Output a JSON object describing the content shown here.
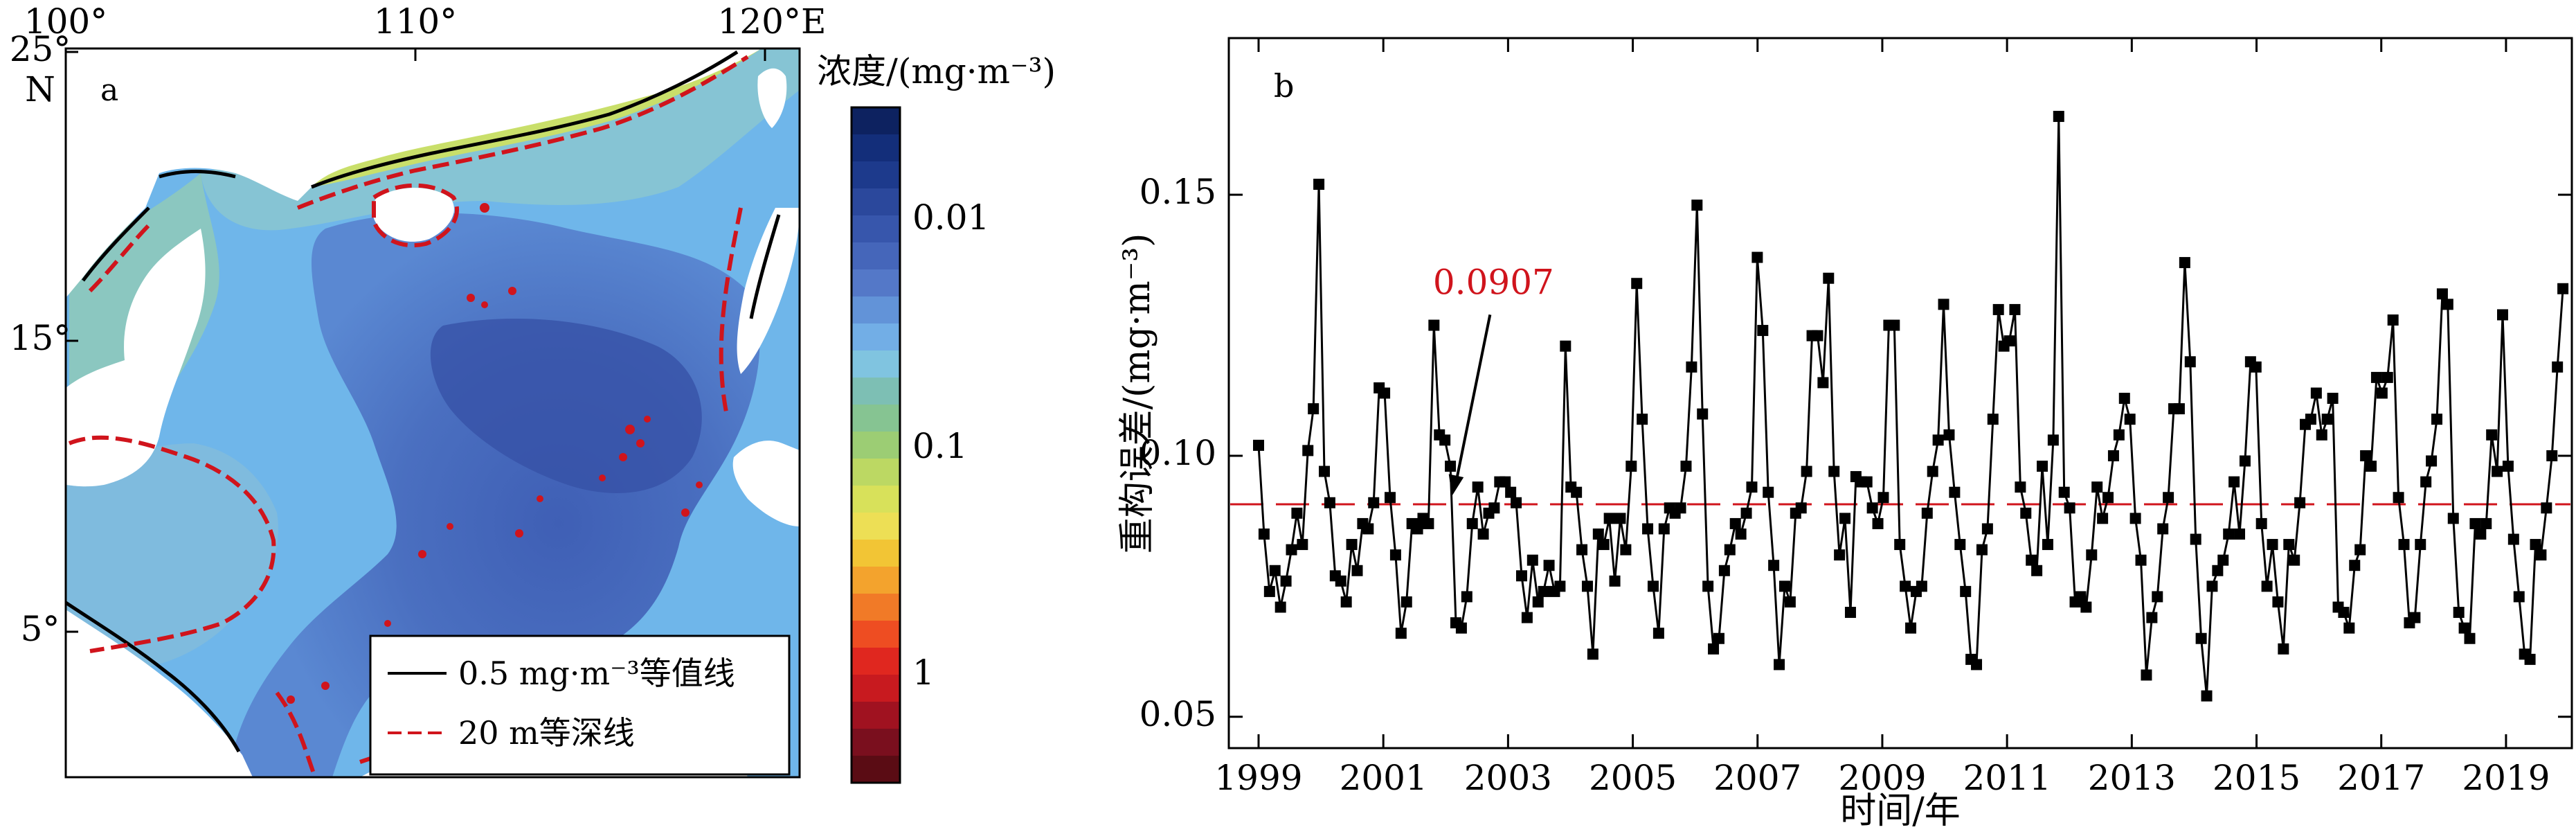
{
  "chart_data": [
    {
      "panel": "a",
      "type": "heatmap",
      "panel_label": "a",
      "x_ticks": [
        "100°",
        "110°",
        "120°E"
      ],
      "y_ticks": [
        "25°\nN",
        "15°",
        "5°"
      ],
      "y_tick_lines": [
        [
          "25°",
          "N"
        ],
        [
          "15°"
        ],
        [
          "5°"
        ]
      ],
      "colorbar": {
        "title": "浓度/(mg·m⁻³)",
        "scale": "log",
        "tick_labels": [
          "0.01",
          "0.1",
          "1"
        ],
        "colors": [
          "#5a0c14",
          "#7a0f1e",
          "#a01220",
          "#c81a1f",
          "#e0271f",
          "#ee4d22",
          "#f17a27",
          "#f3a32d",
          "#f2c535",
          "#eddf55",
          "#d8e15a",
          "#bcd863",
          "#9ccd74",
          "#86c492",
          "#7dbfb4",
          "#80c4e0",
          "#72aee6",
          "#6293d8",
          "#5478c8",
          "#4566ba",
          "#3756ac",
          "#2b489c",
          "#1d3a8c",
          "#132e7a",
          "#0d2260"
        ]
      },
      "legend": [
        {
          "label": "0.5 mg·m⁻³等值线",
          "style": "solid",
          "color": "#000000"
        },
        {
          "label": "20 m等深线",
          "style": "dashed",
          "color": "#d0141c"
        }
      ]
    },
    {
      "panel": "b",
      "type": "line",
      "panel_label": "b",
      "xlabel": "时间/年",
      "ylabel": "重构误差/(mg·m⁻³)",
      "x_tick_labels": [
        "1999",
        "2001",
        "2003",
        "2005",
        "2007",
        "2009",
        "2011",
        "2013",
        "2015",
        "2017",
        "2019"
      ],
      "y_tick_labels": [
        "0.05",
        "0.10",
        "0.15"
      ],
      "xlim": [
        1999.0,
        2020.0
      ],
      "ylim": [
        0.044,
        0.18
      ],
      "mean_line": {
        "value": 0.0907,
        "label": "0.0907",
        "color": "#d0141c",
        "style": "dashed"
      },
      "annotation": {
        "text": "0.0907",
        "points_to_x": 2002.1,
        "points_to_y": 0.0907
      },
      "series": [
        {
          "marker": "square",
          "color": "#000000",
          "values": [
            0.102,
            0.085,
            0.074,
            0.078,
            0.071,
            0.076,
            0.082,
            0.089,
            0.083,
            0.101,
            0.109,
            0.152,
            0.097,
            0.091,
            0.077,
            0.076,
            0.072,
            0.083,
            0.078,
            0.087,
            0.086,
            0.091,
            0.113,
            0.112,
            0.092,
            0.081,
            0.066,
            0.072,
            0.087,
            0.086,
            0.088,
            0.087,
            0.125,
            0.104,
            0.103,
            0.098,
            0.068,
            0.067,
            0.073,
            0.087,
            0.094,
            0.085,
            0.089,
            0.09,
            0.095,
            0.095,
            0.093,
            0.091,
            0.077,
            0.069,
            0.08,
            0.072,
            0.074,
            0.079,
            0.074,
            0.075,
            0.121,
            0.094,
            0.093,
            0.082,
            0.075,
            0.062,
            0.085,
            0.083,
            0.088,
            0.076,
            0.088,
            0.082,
            0.098,
            0.133,
            0.107,
            0.086,
            0.075,
            0.066,
            0.086,
            0.09,
            0.089,
            0.09,
            0.098,
            0.117,
            0.148,
            0.108,
            0.075,
            0.063,
            0.065,
            0.078,
            0.082,
            0.087,
            0.085,
            0.089,
            0.094,
            0.138,
            0.124,
            0.093,
            0.079,
            0.06,
            0.075,
            0.072,
            0.089,
            0.09,
            0.097,
            0.123,
            0.123,
            0.114,
            0.134,
            0.097,
            0.081,
            0.088,
            0.07,
            0.096,
            0.095,
            0.095,
            0.09,
            0.087,
            0.092,
            0.125,
            0.125,
            0.083,
            0.075,
            0.067,
            0.074,
            0.075,
            0.089,
            0.097,
            0.103,
            0.129,
            0.104,
            0.093,
            0.083,
            0.074,
            0.061,
            0.06,
            0.082,
            0.086,
            0.107,
            0.128,
            0.121,
            0.122,
            0.128,
            0.094,
            0.089,
            0.08,
            0.078,
            0.098,
            0.083,
            0.103,
            0.165,
            0.093,
            0.09,
            0.072,
            0.073,
            0.071,
            0.081,
            0.094,
            0.088,
            0.092,
            0.1,
            0.104,
            0.111,
            0.107,
            0.088,
            0.08,
            0.058,
            0.069,
            0.073,
            0.086,
            0.092,
            0.109,
            0.109,
            0.137,
            0.118,
            0.084,
            0.065,
            0.054,
            0.075,
            0.078,
            0.08,
            0.085,
            0.095,
            0.085,
            0.099,
            0.118,
            0.117,
            0.087,
            0.075,
            0.083,
            0.072,
            0.063,
            0.083,
            0.08,
            0.091,
            0.106,
            0.107,
            0.112,
            0.104,
            0.107,
            0.111,
            0.071,
            0.07,
            0.067,
            0.079,
            0.082,
            0.1,
            0.098,
            0.115,
            0.112,
            0.115,
            0.126,
            0.092,
            0.083,
            0.068,
            0.069,
            0.083,
            0.095,
            0.099,
            0.107,
            0.131,
            0.129,
            0.088,
            0.07,
            0.067,
            0.065,
            0.087,
            0.085,
            0.087,
            0.104,
            0.097,
            0.127,
            0.098,
            0.084,
            0.073,
            0.062,
            0.061,
            0.083,
            0.081,
            0.09,
            0.1,
            0.117,
            0.132
          ]
        }
      ]
    }
  ]
}
